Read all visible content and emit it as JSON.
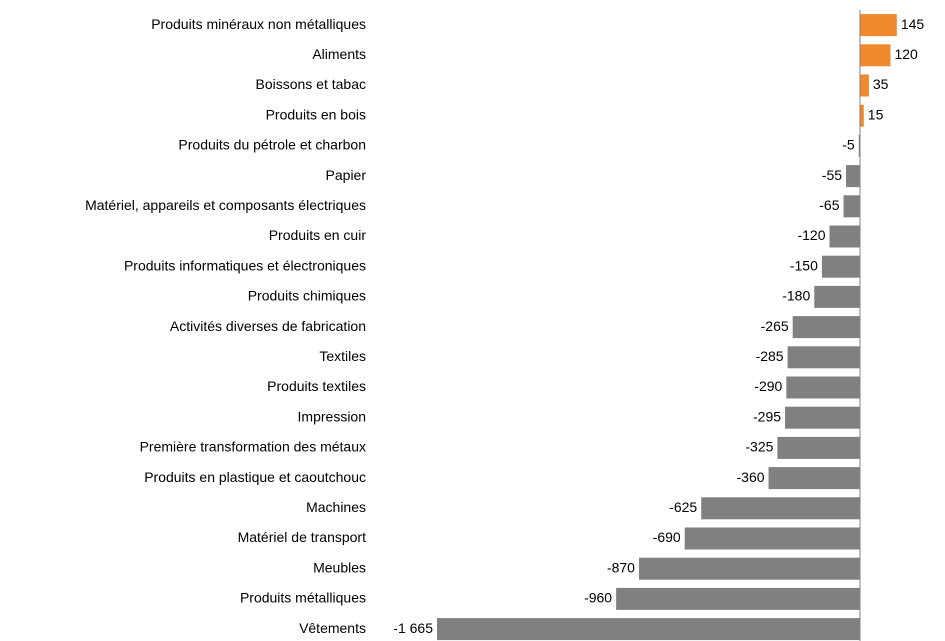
{
  "chart_data": {
    "type": "hbar",
    "categories": [
      "Produits minéraux non métalliques",
      "Aliments",
      "Boissons et tabac",
      "Produits en bois",
      "Produits du pétrole et charbon",
      "Papier",
      "Matériel, appareils et composants électriques",
      "Produits en cuir",
      "Produits informatiques et électroniques",
      "Produits chimiques",
      "Activités diverses de fabrication",
      "Textiles",
      "Produits textiles",
      "Impression",
      "Première transformation des métaux",
      "Produits en plastique et caoutchouc",
      "Machines",
      "Matériel de transport",
      "Meubles",
      "Produits métalliques",
      "Vêtements"
    ],
    "values": [
      145,
      120,
      35,
      15,
      -5,
      -55,
      -65,
      -120,
      -150,
      -180,
      -265,
      -285,
      -290,
      -295,
      -325,
      -360,
      -625,
      -690,
      -870,
      -960,
      -1665
    ],
    "value_labels": [
      "145",
      "120",
      "35",
      "15",
      "-5",
      "-55",
      "-65",
      "-120",
      "-150",
      "-180",
      "-265",
      "-285",
      "-290",
      "-295",
      "-325",
      "-360",
      "-625",
      "-690",
      "-870",
      "-960",
      "-1 665"
    ],
    "positive_color": "#f08a2c",
    "negative_color": "#808080"
  }
}
